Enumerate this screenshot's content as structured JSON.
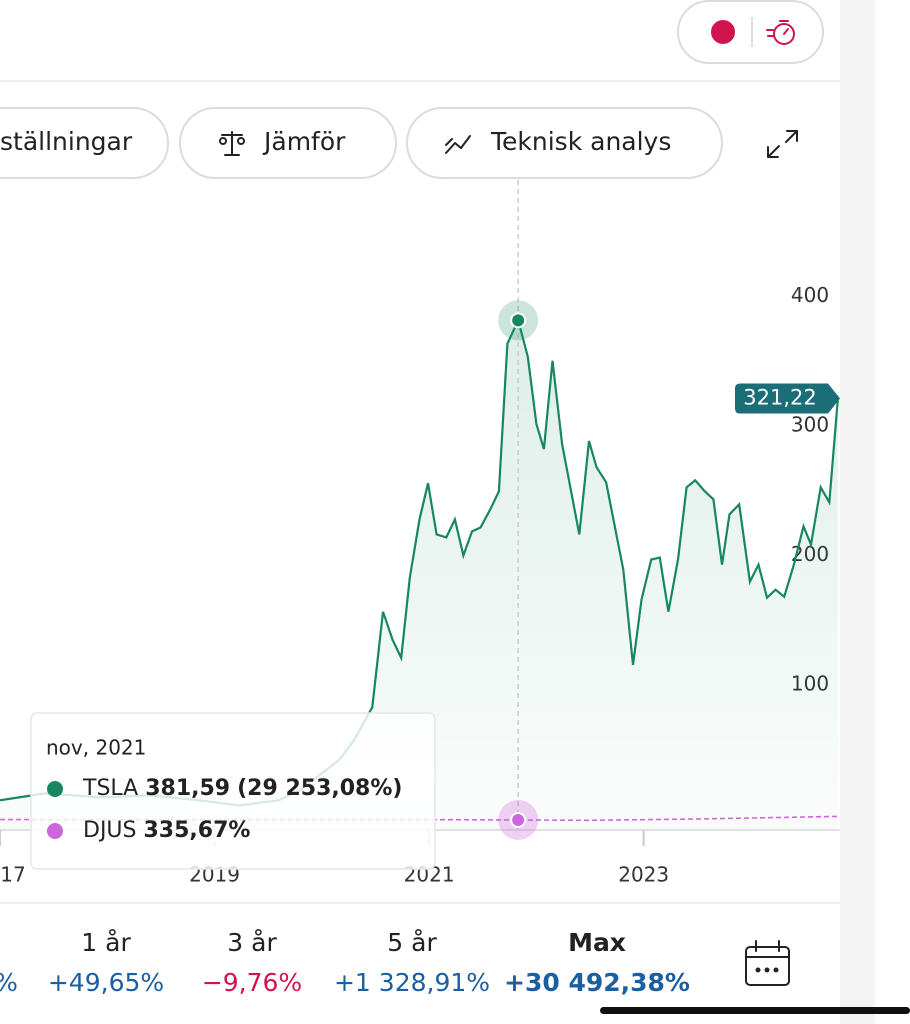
{
  "toolbar": {
    "buttons": [
      "ställningar",
      "Jämför",
      "Teknisk analys"
    ]
  },
  "chart_data": {
    "type": "line",
    "xlim": [
      2017,
      2024.83
    ],
    "ylim": [
      -12,
      490
    ],
    "xticks": [
      {
        "value": 2017,
        "label": "17"
      },
      2019,
      2021,
      2023
    ],
    "yticks": [
      100,
      200,
      300,
      400
    ],
    "series": [
      {
        "name": "TSLA",
        "color": "#16875f",
        "x": [
          2017.0,
          2017.42,
          2017.93,
          2018.4,
          2018.86,
          2019.23,
          2019.6,
          2019.79,
          2020.16,
          2020.3,
          2020.47,
          2020.57,
          2020.66,
          2020.74,
          2020.82,
          2020.91,
          2020.99,
          2021.07,
          2021.16,
          2021.24,
          2021.32,
          2021.4,
          2021.48,
          2021.57,
          2021.65,
          2021.73,
          2021.83,
          2021.92,
          2022.0,
          2022.07,
          2022.15,
          2022.24,
          2022.32,
          2022.4,
          2022.49,
          2022.56,
          2022.65,
          2022.81,
          2022.9,
          2022.98,
          2023.07,
          2023.15,
          2023.23,
          2023.32,
          2023.4,
          2023.48,
          2023.57,
          2023.65,
          2023.73,
          2023.8,
          2023.89,
          2023.99,
          2024.07,
          2024.15,
          2024.23,
          2024.31,
          2024.4,
          2024.49,
          2024.56,
          2024.65,
          2024.73,
          2024.81
        ],
        "values": [
          10.9,
          16.3,
          13.2,
          14.7,
          10.9,
          7.0,
          10.9,
          18.6,
          41.9,
          57.4,
          82.9,
          156.6,
          134.9,
          120.9,
          182.9,
          227.9,
          255.8,
          216.3,
          214.0,
          227.9,
          200.0,
          218.6,
          221.7,
          235.7,
          249.6,
          363.6,
          381.59,
          353.5,
          301.6,
          282.2,
          350.4,
          286.0,
          251.2,
          216.3,
          288.4,
          268.2,
          256.6,
          189.1,
          115.5,
          165.9,
          196.9,
          198.4,
          156.6,
          196.9,
          252.7,
          258.1,
          249.6,
          243.4,
          193.0,
          231.8,
          239.5,
          179.8,
          193.0,
          167.4,
          173.6,
          168.2,
          193.0,
          222.5,
          208.5,
          252.7,
          241.1,
          321.22
        ]
      },
      {
        "name": "DJUS",
        "color": "#cc66dd",
        "x": [
          2017.0,
          2019.0,
          2021.0,
          2022.5,
          2023.5,
          2024.81
        ],
        "values": [
          -4,
          -4,
          -4,
          -4.5,
          -3.5,
          -1.5
        ]
      }
    ],
    "price_tag": "321,22",
    "tooltip": {
      "date": "nov, 2021",
      "x": 2021.83,
      "items": [
        {
          "value": 381.59,
          "value_label": "381,59",
          "change_label": "(29 253,08%)"
        },
        {
          "value": 335.67,
          "value_label": "335,67%"
        }
      ]
    }
  },
  "periods": [
    {
      "change": "%"
    },
    {
      "label": "1 år",
      "change": "+49,65%"
    },
    {
      "label": "3 år",
      "change": "−9,76%"
    },
    {
      "label": "5 år",
      "change": "+1 328,91%"
    },
    {
      "label": "Max",
      "change": "+30 492,38%"
    }
  ]
}
